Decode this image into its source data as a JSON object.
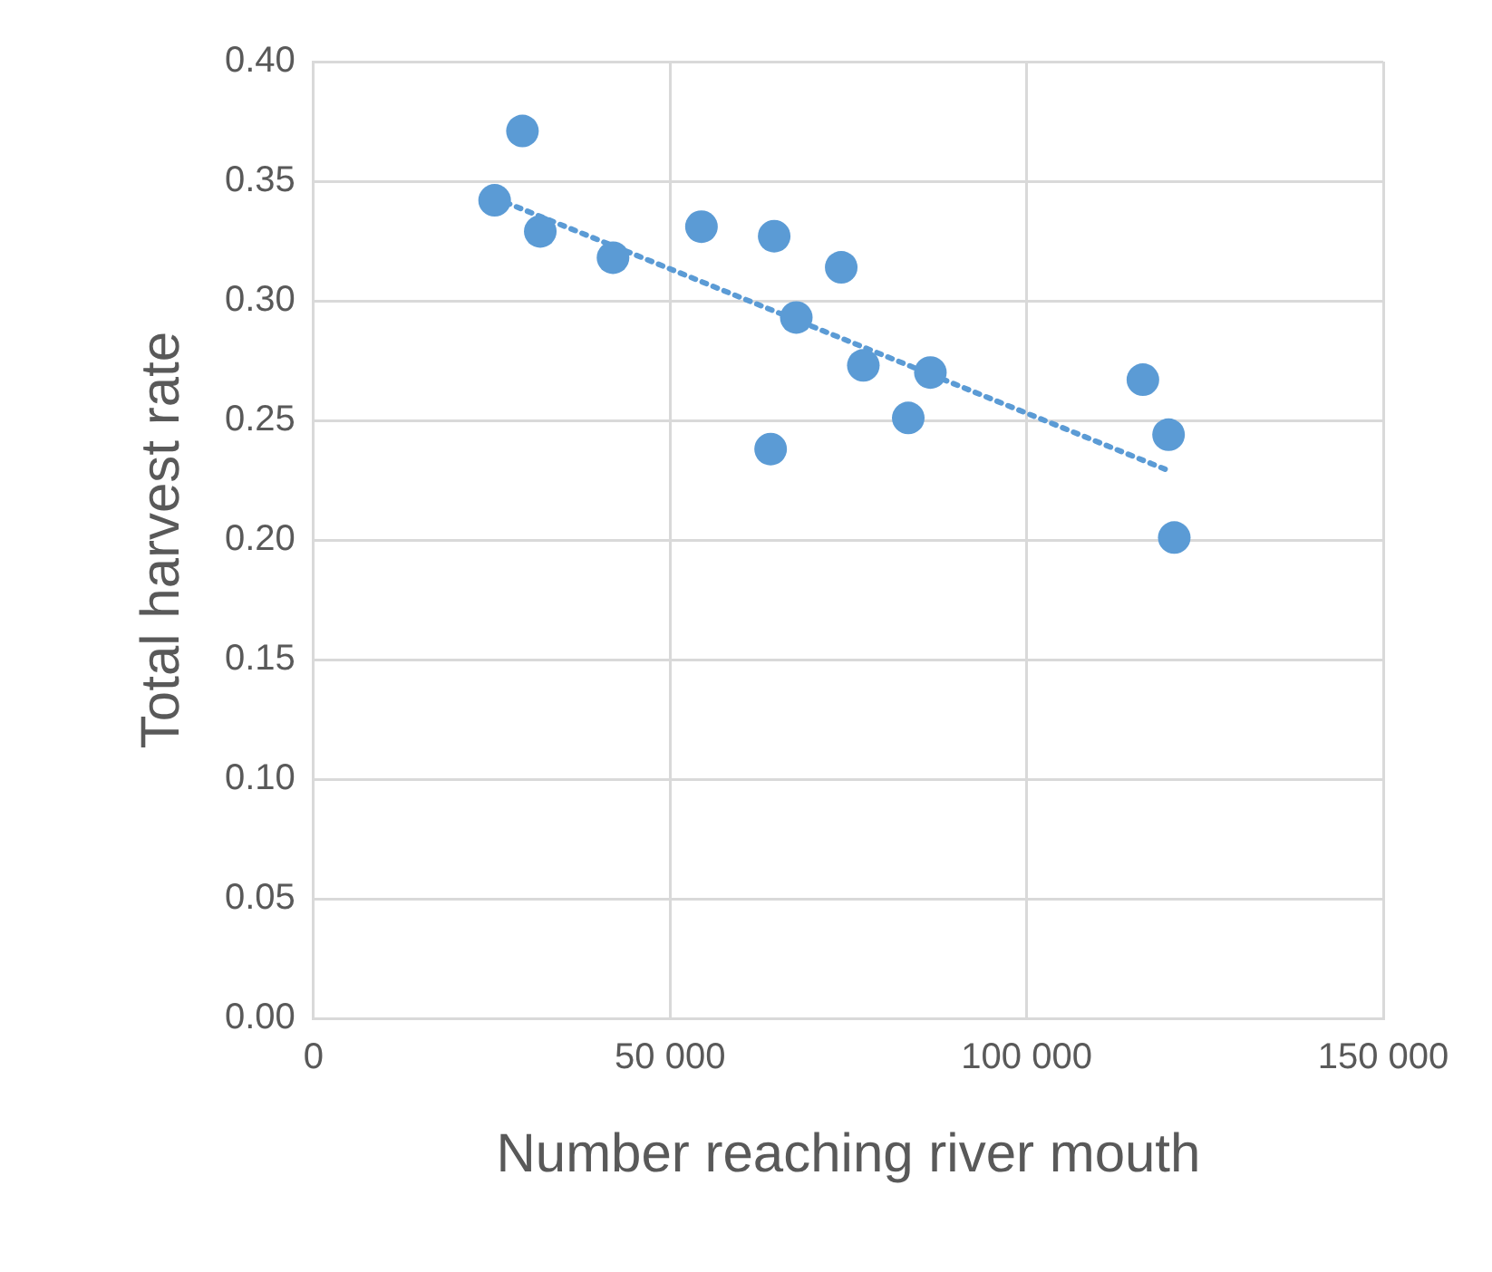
{
  "chart_data": {
    "type": "scatter",
    "xlabel": "Number reaching river mouth",
    "ylabel": "Total harvest rate",
    "xlim": [
      0,
      150000
    ],
    "xticks": [
      {
        "value": 0,
        "label": "0"
      },
      {
        "value": 50000,
        "label": "50 000"
      },
      {
        "value": 100000,
        "label": "100 000"
      },
      {
        "value": 150000,
        "label": "150 000"
      }
    ],
    "ylim": [
      0,
      0.4
    ],
    "yticks": [
      {
        "value": 0,
        "label": "0.00"
      },
      {
        "value": 0.05,
        "label": "0.05"
      },
      {
        "value": 0.1,
        "label": "0.10"
      },
      {
        "value": 0.15,
        "label": "0.15"
      },
      {
        "value": 0.2,
        "label": "0.20"
      },
      {
        "value": 0.25,
        "label": "0.25"
      },
      {
        "value": 0.3,
        "label": "0.30"
      },
      {
        "value": 0.35,
        "label": "0.35"
      },
      {
        "value": 0.4,
        "label": "0.40"
      }
    ],
    "grid": true,
    "marker": "circle",
    "series": [
      {
        "type": "scatter",
        "color": "#5b9bd5",
        "x": [
          25400,
          29300,
          31800,
          42000,
          54400,
          64600,
          64100,
          67700,
          74000,
          77100,
          83400,
          86500,
          116300,
          119900,
          120700
        ],
        "values": [
          0.342,
          0.371,
          0.329,
          0.318,
          0.331,
          0.327,
          0.238,
          0.293,
          0.314,
          0.273,
          0.251,
          0.27,
          0.267,
          0.244,
          0.201
        ]
      },
      {
        "type": "line",
        "color": "#5b9bd5",
        "line_style": "dotted",
        "marker": "none",
        "x": [
          25400,
          119900
        ],
        "values": [
          0.343,
          0.229
        ]
      }
    ]
  }
}
